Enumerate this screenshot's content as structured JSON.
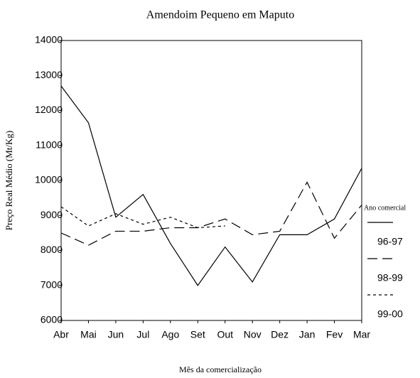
{
  "chart_data": {
    "type": "line",
    "title": "Amendoim Pequeno em Maputo",
    "x_label": "Mês da comercialização",
    "y_label": "Preço Real Médio (Mt/Kg)",
    "legend_title": "Ano comercial",
    "legend_position": "right",
    "categories": [
      "Abr",
      "Mai",
      "Jun",
      "Jul",
      "Ago",
      "Set",
      "Out",
      "Nov",
      "Dez",
      "Jan",
      "Fev",
      "Mar"
    ],
    "series": [
      {
        "name": "96-97",
        "color": "#000000",
        "linestyle": "solid",
        "values": [
          12700,
          11650,
          8950,
          9600,
          8200,
          7000,
          8100,
          7100,
          8450,
          8450,
          8900,
          10350
        ]
      },
      {
        "name": "98-99",
        "color": "#000000",
        "linestyle": "long-dash",
        "values": [
          8500,
          8150,
          8550,
          8550,
          8650,
          8650,
          8900,
          8450,
          8550,
          9950,
          8350,
          9300
        ]
      },
      {
        "name": "99-00",
        "color": "#000000",
        "linestyle": "short-dash",
        "values": [
          9250,
          8700,
          9050,
          8750,
          8950,
          8650,
          8700,
          null,
          null,
          null,
          null,
          null
        ]
      }
    ],
    "ylim": [
      6000,
      14000
    ],
    "yticks": [
      6000,
      7000,
      8000,
      9000,
      10000,
      11000,
      12000,
      13000,
      14000
    ],
    "grid": false
  }
}
